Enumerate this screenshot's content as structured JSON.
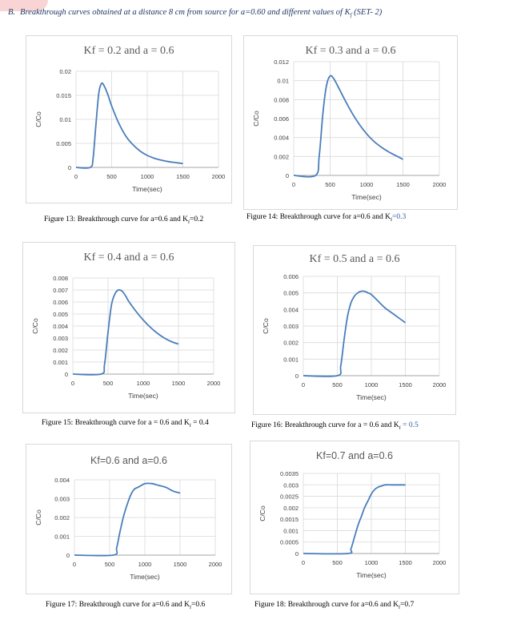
{
  "header": {
    "lead": "B.",
    "text": "Breakthrough curves obtained at a distance 8 cm from source for a=0.60 and different values of K",
    "sub": "f",
    "tail": " (SET- 2)"
  },
  "chart_data": [
    {
      "type": "line",
      "title": "Kf = 0.2 and a = 0.6",
      "xlabel": "Time(sec)",
      "ylabel": "C/Co",
      "xlim": [
        0,
        2000
      ],
      "ylim": [
        0,
        0.02
      ],
      "xticks": [
        "0",
        "500",
        "1000",
        "1500",
        "2000"
      ],
      "yticks": [
        "0",
        "0.005",
        "0.01",
        "0.015",
        "0.02"
      ],
      "grid": true,
      "x": [
        0,
        200,
        240,
        280,
        320,
        360,
        400,
        450,
        500,
        600,
        700,
        800,
        900,
        1000,
        1100,
        1200,
        1300,
        1400,
        1500
      ],
      "y": [
        0,
        0,
        0.002,
        0.009,
        0.0155,
        0.0175,
        0.0168,
        0.015,
        0.0128,
        0.0092,
        0.0065,
        0.0047,
        0.0034,
        0.0025,
        0.0019,
        0.0015,
        0.0012,
        0.001,
        0.0008
      ],
      "caption": "Figure 13:   Breakthrough curve for a=0.6 and K",
      "caption_sub": "f",
      "caption_tail": "=0.2"
    },
    {
      "type": "line",
      "title": "Kf = 0.3 and a = 0.6",
      "xlabel": "Time(sec)",
      "ylabel": "C/Co",
      "xlim": [
        0,
        2000
      ],
      "ylim": [
        0,
        0.012
      ],
      "xticks": [
        "0",
        "500",
        "1000",
        "1500",
        "2000"
      ],
      "yticks": [
        "0",
        "0.002",
        "0.004",
        "0.006",
        "0.008",
        "0.01",
        "0.012"
      ],
      "grid": true,
      "x": [
        0,
        300,
        350,
        400,
        450,
        500,
        550,
        600,
        700,
        800,
        900,
        1000,
        1100,
        1200,
        1300,
        1400,
        1500
      ],
      "y": [
        0,
        0,
        0.002,
        0.0065,
        0.0095,
        0.0105,
        0.0102,
        0.0095,
        0.008,
        0.0066,
        0.0054,
        0.0044,
        0.0036,
        0.003,
        0.0025,
        0.0021,
        0.0017
      ],
      "caption": "Figure 14:   Breakthrough curve for a=0.6 and K",
      "caption_sub": "f",
      "caption_tail": "=0.3"
    },
    {
      "type": "line",
      "title": "Kf = 0.4 and a = 0.6",
      "xlabel": "Time(sec)",
      "ylabel": "C/Co",
      "xlim": [
        0,
        2000
      ],
      "ylim": [
        0,
        0.008
      ],
      "xticks": [
        "0",
        "500",
        "1000",
        "1500",
        "2000"
      ],
      "yticks": [
        "0",
        "0.001",
        "0.002",
        "0.003",
        "0.004",
        "0.005",
        "0.006",
        "0.007",
        "0.008"
      ],
      "grid": true,
      "x": [
        0,
        400,
        450,
        500,
        550,
        600,
        650,
        700,
        750,
        800,
        900,
        1000,
        1100,
        1200,
        1300,
        1400,
        1500
      ],
      "y": [
        0,
        0,
        0.0008,
        0.0035,
        0.0058,
        0.0067,
        0.007,
        0.0069,
        0.0065,
        0.006,
        0.0052,
        0.0045,
        0.0039,
        0.0034,
        0.003,
        0.0027,
        0.0025
      ],
      "caption": "Figure 15:   Breakthrough curve for a = 0.6 and K",
      "caption_sub": "f",
      "caption_tail": " = 0.4"
    },
    {
      "type": "line",
      "title": "Kf = 0.5 and a = 0.6",
      "xlabel": "Time(sec)",
      "ylabel": "C/Co",
      "xlim": [
        0,
        2000
      ],
      "ylim": [
        0,
        0.006
      ],
      "xticks": [
        "0",
        "500",
        "1000",
        "1500",
        "2000"
      ],
      "yticks": [
        "0",
        "0.001",
        "0.002",
        "0.003",
        "0.004",
        "0.005",
        "0.006"
      ],
      "grid": true,
      "x": [
        0,
        500,
        550,
        600,
        650,
        700,
        750,
        800,
        850,
        900,
        950,
        1000,
        1100,
        1200,
        1300,
        1400,
        1500
      ],
      "y": [
        0,
        0,
        0.0006,
        0.0022,
        0.0036,
        0.0044,
        0.0048,
        0.005,
        0.0051,
        0.0051,
        0.005,
        0.0049,
        0.0045,
        0.0041,
        0.0038,
        0.0035,
        0.0032
      ],
      "caption": "Figure 16:   Breakthrough curve for a = 0.6 and K",
      "caption_sub": "f",
      "caption_tail": " = 0.5"
    },
    {
      "type": "line",
      "title": "Kf=0.6 and a=0.6",
      "xlabel": "Time(sec)",
      "ylabel": "C/Co",
      "xlim": [
        0,
        2000
      ],
      "ylim": [
        0,
        0.004
      ],
      "xticks": [
        "0",
        "500",
        "1000",
        "1500",
        "2000"
      ],
      "yticks": [
        "0",
        "0.001",
        "0.002",
        "0.003",
        "0.004"
      ],
      "grid": true,
      "x": [
        0,
        550,
        600,
        650,
        700,
        750,
        800,
        850,
        900,
        950,
        1000,
        1100,
        1200,
        1300,
        1400,
        1500
      ],
      "y": [
        0,
        0,
        0.0004,
        0.0013,
        0.0021,
        0.0027,
        0.0032,
        0.0035,
        0.0036,
        0.0037,
        0.0038,
        0.0038,
        0.0037,
        0.0036,
        0.0034,
        0.0033
      ],
      "caption": "Figure 17:   Breakthrough curve for a=0.6 and K",
      "caption_sub": "f",
      "caption_tail": "=0.6"
    },
    {
      "type": "line",
      "title": "Kf=0.7 and a=0.6",
      "xlabel": "Time(sec)",
      "ylabel": "C/Co",
      "xlim": [
        0,
        2000
      ],
      "ylim": [
        0,
        0.0035
      ],
      "xticks": [
        "0",
        "500",
        "1000",
        "1500",
        "2000"
      ],
      "yticks": [
        "0",
        "0.0005",
        "0.001",
        "0.0015",
        "0.002",
        "0.0025",
        "0.003",
        "0.0035"
      ],
      "grid": true,
      "x": [
        0,
        650,
        700,
        750,
        800,
        850,
        900,
        950,
        1000,
        1050,
        1100,
        1150,
        1200,
        1300,
        1400,
        1500
      ],
      "y": [
        0,
        0,
        0.0002,
        0.0007,
        0.0012,
        0.0016,
        0.002,
        0.0023,
        0.0026,
        0.0028,
        0.0029,
        0.00295,
        0.003,
        0.003,
        0.003,
        0.003
      ],
      "caption": "Figure 18:   Breakthrough curve for a=0.6 and K",
      "caption_sub": "f",
      "caption_tail": "=0.7"
    }
  ],
  "colors": {
    "line": "#4a7ebb",
    "grid": "#d9d9d9",
    "axis": "#a6a6a6",
    "tick_text": "#404040",
    "caption_highlight": "#2e5aa8"
  }
}
